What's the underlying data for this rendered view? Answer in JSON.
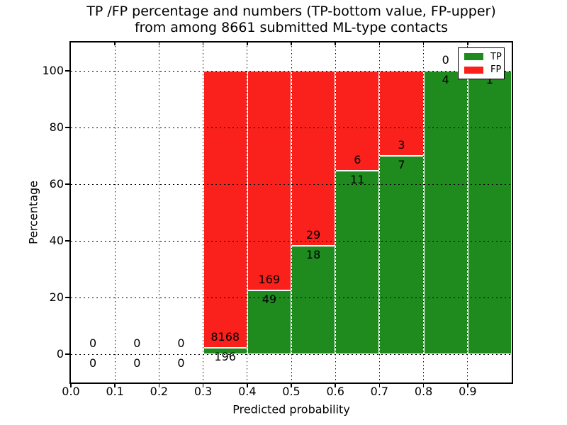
{
  "title": {
    "line1": "TP /FP percentage and numbers (TP-bottom value, FP-upper)",
    "line2": "from among 8661 submitted ML-type contacts"
  },
  "axes": {
    "xlabel": "Predicted probability",
    "ylabel": "Percentage",
    "x_ticks": [
      "0.0",
      "0.1",
      "0.2",
      "0.3",
      "0.4",
      "0.5",
      "0.6",
      "0.7",
      "0.8",
      "0.9"
    ],
    "x_tick_values": [
      0,
      0.1,
      0.2,
      0.3,
      0.4,
      0.5,
      0.6,
      0.7,
      0.8,
      0.9
    ],
    "y_ticks": [
      "0",
      "20",
      "40",
      "60",
      "80",
      "100"
    ],
    "y_tick_values": [
      0,
      20,
      40,
      60,
      80,
      100
    ]
  },
  "legend": {
    "items": [
      {
        "label": "TP",
        "color": "#1f8b1f"
      },
      {
        "label": "FP",
        "color": "#fa201b"
      }
    ]
  },
  "chart_data": {
    "type": "bar",
    "stacked": true,
    "normalized": "percent of bin total",
    "title": "TP /FP percentage and numbers (TP-bottom value, FP-upper) from among 8661 submitted ML-type contacts",
    "xlabel": "Predicted probability",
    "ylabel": "Percentage",
    "xlim": [
      0,
      1
    ],
    "ylim": [
      -10,
      110
    ],
    "grid": "dotted",
    "legend_position": "upper right",
    "total_contacts": 8661,
    "bin_edges": [
      0.0,
      0.1,
      0.2,
      0.3,
      0.4,
      0.5,
      0.6,
      0.7,
      0.8,
      0.9,
      1.0
    ],
    "series": [
      {
        "name": "TP",
        "color": "#1f8b1f",
        "counts": [
          0,
          0,
          0,
          196,
          49,
          18,
          11,
          7,
          4,
          1
        ]
      },
      {
        "name": "FP",
        "color": "#fa201b",
        "counts": [
          0,
          0,
          0,
          8168,
          169,
          29,
          6,
          3,
          0,
          0
        ]
      }
    ]
  },
  "annotations": [
    {
      "bin": 0,
      "fp": "0",
      "tp": "0"
    },
    {
      "bin": 1,
      "fp": "0",
      "tp": "0"
    },
    {
      "bin": 2,
      "fp": "0",
      "tp": "0"
    },
    {
      "bin": 3,
      "fp": "8168",
      "tp": "196"
    },
    {
      "bin": 4,
      "fp": "169",
      "tp": "49"
    },
    {
      "bin": 5,
      "fp": "29",
      "tp": "18"
    },
    {
      "bin": 6,
      "fp": "6",
      "tp": "11"
    },
    {
      "bin": 7,
      "fp": "3",
      "tp": "7"
    },
    {
      "bin": 8,
      "fp": "0",
      "tp": "4"
    },
    {
      "bin": 9,
      "tp": "1"
    }
  ]
}
